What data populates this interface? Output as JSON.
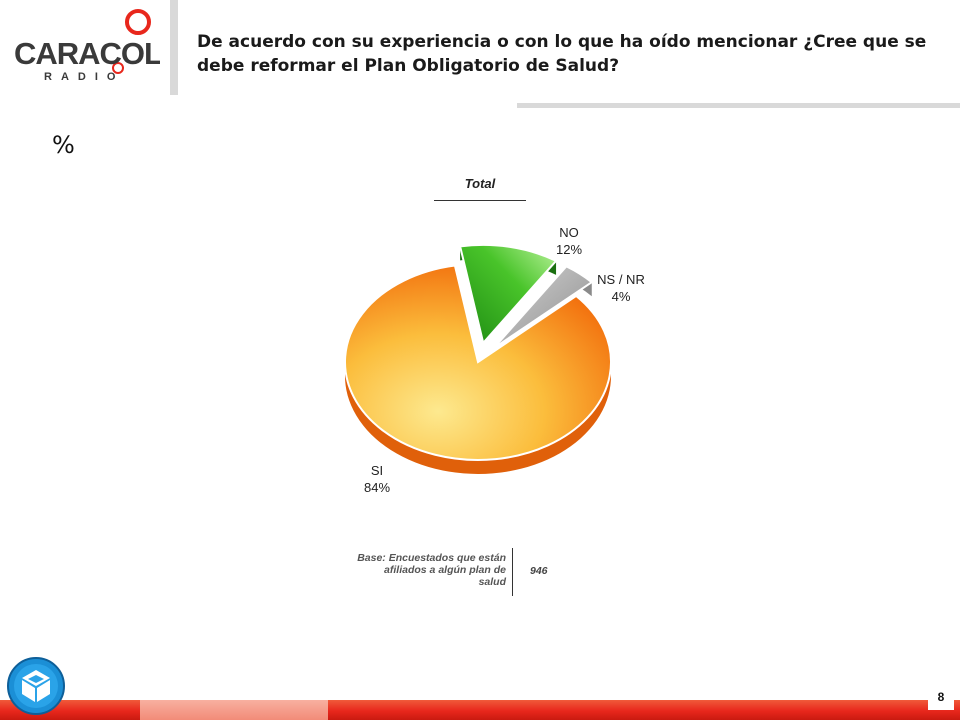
{
  "brand": {
    "name": "CARACOL",
    "sub": "RADIO",
    "accent": "#e8271c"
  },
  "header": {
    "title": "De acuerdo con su experiencia o con lo que ha oído mencionar ¿Cree que se debe reformar el Plan Obligatorio de Salud?"
  },
  "unit_label": "%",
  "chart_data": {
    "type": "pie",
    "title": "Total",
    "slices": [
      {
        "label": "SI",
        "value": 84,
        "display": "84%",
        "color": "#f9a21a"
      },
      {
        "label": "NO",
        "value": 12,
        "display": "12%",
        "color": "#3cb81c"
      },
      {
        "label": "NS / NR",
        "value": 4,
        "display": "4%",
        "color": "#b3b3b3"
      }
    ],
    "exploded": [
      "NO",
      "NS / NR"
    ]
  },
  "base": {
    "label": "Base: Encuestados que están afiliados a algún plan de salud",
    "value": "946"
  },
  "footer": {
    "page_number": "8"
  }
}
